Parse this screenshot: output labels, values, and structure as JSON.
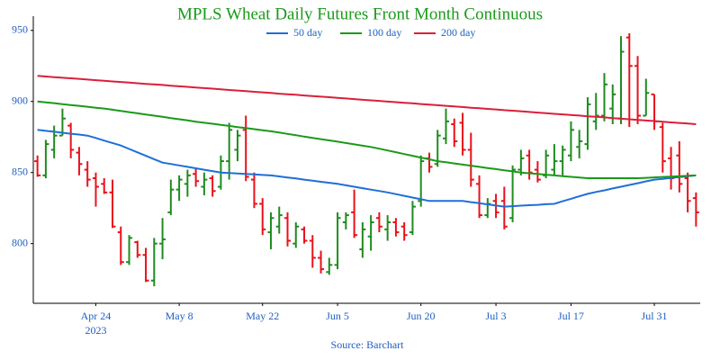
{
  "chart_data": {
    "type": "ohlc",
    "title": "MPLS Wheat Daily Futures Front Month Continuous",
    "source": "Source: Barchart",
    "categories": [
      "2023-04-13",
      "2023-04-14",
      "2023-04-17",
      "2023-04-18",
      "2023-04-19",
      "2023-04-20",
      "2023-04-21",
      "2023-04-24",
      "2023-04-25",
      "2023-04-26",
      "2023-04-27",
      "2023-04-28",
      "2023-05-01",
      "2023-05-02",
      "2023-05-03",
      "2023-05-04",
      "2023-05-05",
      "2023-05-08",
      "2023-05-09",
      "2023-05-10",
      "2023-05-11",
      "2023-05-12",
      "2023-05-15",
      "2023-05-16",
      "2023-05-17",
      "2023-05-18",
      "2023-05-19",
      "2023-05-22",
      "2023-05-23",
      "2023-05-24",
      "2023-05-25",
      "2023-05-26",
      "2023-05-30",
      "2023-05-31",
      "2023-06-01",
      "2023-06-02",
      "2023-06-05",
      "2023-06-06",
      "2023-06-07",
      "2023-06-08",
      "2023-06-09",
      "2023-06-12",
      "2023-06-13",
      "2023-06-14",
      "2023-06-15",
      "2023-06-16",
      "2023-06-20",
      "2023-06-21",
      "2023-06-22",
      "2023-06-23",
      "2023-06-26",
      "2023-06-27",
      "2023-06-28",
      "2023-06-29",
      "2023-06-30",
      "2023-07-03",
      "2023-07-05",
      "2023-07-06",
      "2023-07-07",
      "2023-07-10",
      "2023-07-11",
      "2023-07-12",
      "2023-07-13",
      "2023-07-14",
      "2023-07-17",
      "2023-07-18",
      "2023-07-19",
      "2023-07-20",
      "2023-07-21",
      "2023-07-24",
      "2023-07-25",
      "2023-07-26",
      "2023-07-27",
      "2023-07-28",
      "2023-07-31",
      "2023-08-01",
      "2023-08-02",
      "2023-08-03",
      "2023-08-04",
      "2023-08-07"
    ],
    "up_color": "#1e8c1e",
    "down_color": "#e8121b",
    "open": [
      858,
      848,
      866,
      876,
      883,
      864,
      852,
      846,
      842,
      836,
      808,
      787,
      801,
      792,
      774,
      800,
      822,
      838,
      842,
      849,
      840,
      846,
      840,
      858,
      866,
      880,
      845,
      828,
      808,
      812,
      818,
      800,
      810,
      802,
      790,
      780,
      785,
      815,
      822,
      796,
      805,
      818,
      810,
      815,
      812,
      808,
      830,
      860,
      856,
      874,
      884,
      885,
      866,
      842,
      820,
      830,
      830,
      818,
      852,
      862,
      852,
      848,
      852,
      858,
      862,
      868,
      870,
      886,
      890,
      895,
      888,
      945,
      925,
      890,
      905,
      882,
      860,
      862,
      846,
      832
    ],
    "high": [
      862,
      873,
      883,
      895,
      885,
      868,
      858,
      850,
      846,
      845,
      812,
      806,
      802,
      797,
      804,
      818,
      845,
      848,
      852,
      853,
      850,
      848,
      862,
      885,
      880,
      890,
      850,
      832,
      822,
      826,
      822,
      815,
      812,
      806,
      795,
      790,
      822,
      822,
      838,
      815,
      820,
      822,
      820,
      818,
      815,
      830,
      862,
      864,
      880,
      895,
      888,
      892,
      878,
      848,
      832,
      835,
      840,
      855,
      866,
      866,
      858,
      866,
      870,
      869,
      886,
      880,
      903,
      906,
      920,
      912,
      946,
      948,
      932,
      916,
      905,
      885,
      868,
      872,
      850,
      836
    ],
    "low": [
      847,
      846,
      860,
      876,
      860,
      848,
      840,
      826,
      835,
      811,
      785,
      785,
      790,
      773,
      770,
      789,
      820,
      830,
      833,
      840,
      834,
      833,
      838,
      845,
      858,
      844,
      825,
      806,
      796,
      807,
      798,
      797,
      800,
      783,
      779,
      778,
      782,
      810,
      804,
      790,
      795,
      808,
      802,
      805,
      802,
      806,
      826,
      850,
      854,
      870,
      868,
      862,
      840,
      818,
      818,
      818,
      810,
      815,
      848,
      845,
      843,
      846,
      848,
      848,
      858,
      860,
      866,
      880,
      886,
      884,
      884,
      882,
      884,
      890,
      880,
      850,
      838,
      836,
      822,
      812
    ],
    "close": [
      848,
      870,
      876,
      888,
      866,
      856,
      845,
      840,
      836,
      812,
      787,
      804,
      792,
      774,
      800,
      803,
      838,
      845,
      848,
      844,
      845,
      837,
      858,
      880,
      876,
      847,
      828,
      810,
      818,
      820,
      802,
      812,
      802,
      790,
      782,
      785,
      818,
      820,
      806,
      810,
      815,
      812,
      815,
      808,
      806,
      826,
      858,
      854,
      876,
      886,
      872,
      866,
      845,
      820,
      828,
      822,
      812,
      852,
      860,
      850,
      845,
      862,
      858,
      866,
      880,
      872,
      898,
      890,
      912,
      905,
      935,
      925,
      890,
      906,
      886,
      858,
      846,
      842,
      830,
      822
    ],
    "series": [
      {
        "name": "50 day",
        "color": "#1f6fd6",
        "values": [
          880,
          879.3,
          878.7,
          878,
          877.3,
          876.7,
          876,
          874.3,
          872.5,
          870.8,
          869,
          866.6,
          864.2,
          861.8,
          859.4,
          857,
          856,
          855,
          854,
          853,
          852,
          851,
          850,
          849.7,
          849.3,
          849,
          848.7,
          848.3,
          848,
          847.3,
          846.5,
          845.8,
          845,
          844.3,
          843.5,
          842.8,
          842,
          841,
          840,
          839,
          838,
          837,
          836,
          834.8,
          833.6,
          832.4,
          831.2,
          830,
          830,
          830,
          830,
          830,
          829.2,
          828.4,
          827.6,
          826.8,
          826,
          826.3,
          826.7,
          827,
          827.3,
          827.7,
          828,
          829.8,
          831.5,
          833.3,
          835,
          836.3,
          837.5,
          838.8,
          840,
          841.3,
          842.5,
          843.8,
          845,
          845.6,
          846.2,
          846.8,
          847.4,
          848
        ]
      },
      {
        "name": "100 day",
        "color": "#1a9a1a",
        "values": [
          900,
          899.4,
          898.8,
          898.1,
          897.5,
          896.9,
          896.3,
          895.6,
          895,
          894.2,
          893.3,
          892.5,
          891.7,
          890.8,
          890,
          889.2,
          888.3,
          887.5,
          886.7,
          885.8,
          885,
          884.3,
          883.5,
          882.8,
          882,
          881.3,
          880.5,
          879.8,
          879,
          878.1,
          877.2,
          876.3,
          875.3,
          874.4,
          873.5,
          872.6,
          871.7,
          870.8,
          869.8,
          868.9,
          868,
          866.8,
          865.5,
          864.3,
          863,
          861.8,
          860.5,
          859.3,
          858,
          857.2,
          856.4,
          855.6,
          854.8,
          854,
          853.2,
          852.4,
          851.6,
          850.8,
          850,
          849.5,
          849,
          848.5,
          848,
          847.5,
          847,
          846.5,
          846,
          846,
          846,
          846,
          846,
          846,
          846,
          846.3,
          846.6,
          846.9,
          847.1,
          847.4,
          847.7,
          848
        ]
      },
      {
        "name": "200 day",
        "color": "#d9203a",
        "values": [
          918,
          917.6,
          917.1,
          916.7,
          916.3,
          915.9,
          915.4,
          915,
          914.6,
          914.1,
          913.7,
          913.3,
          912.8,
          912.4,
          912,
          911.6,
          911.1,
          910.7,
          910.3,
          909.8,
          909.4,
          909,
          908.5,
          908.1,
          907.7,
          907.3,
          906.8,
          906.4,
          906,
          905.5,
          905.1,
          904.7,
          904.2,
          903.8,
          903.4,
          903,
          902.5,
          902.1,
          901.7,
          901.2,
          900.8,
          900.4,
          899.9,
          899.5,
          899.1,
          898.7,
          898.2,
          897.8,
          897.4,
          896.9,
          896.5,
          896.1,
          895.6,
          895.2,
          894.8,
          894.4,
          893.9,
          893.5,
          893.1,
          892.6,
          892.2,
          891.8,
          891.3,
          890.9,
          890.5,
          890.1,
          889.6,
          889.2,
          888.8,
          888.3,
          887.9,
          887.5,
          887,
          886.6,
          886.2,
          885.8,
          885.3,
          884.9,
          884.5,
          884
        ]
      }
    ],
    "ylim": [
      758,
      960
    ],
    "yticks": [
      800,
      850,
      900,
      950
    ],
    "xticks": [
      {
        "value": "2023-04-24",
        "label": "Apr 24"
      },
      {
        "value": "2023-05-08",
        "label": "May 8"
      },
      {
        "value": "2023-05-22",
        "label": "May 22"
      },
      {
        "value": "2023-06-05",
        "label": "Jun 5"
      },
      {
        "value": "2023-06-20",
        "label": "Jun 20"
      },
      {
        "value": "2023-07-03",
        "label": "Jul 3"
      },
      {
        "value": "2023-07-17",
        "label": "Jul 17"
      },
      {
        "value": "2023-07-31",
        "label": "Jul 31"
      }
    ],
    "xtick_year": "2023",
    "grid": false
  }
}
